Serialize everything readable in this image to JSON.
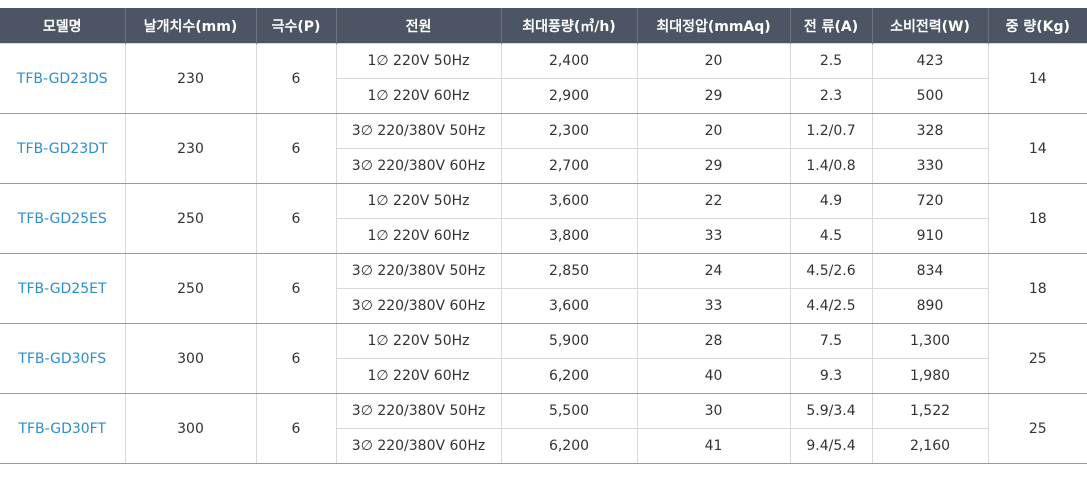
{
  "headers": [
    "모델명",
    "날개치수(mm)",
    "극수(P)",
    "전원",
    "최대풍량(㎥/h)",
    "최대정압(mmAq)",
    "전 류(A)",
    "소비전력(W)",
    "중 량(Kg)"
  ],
  "models": [
    {
      "model": "TFB-GD23DS",
      "blade": "230",
      "poles": "6",
      "weight": "14",
      "rows": [
        {
          "power": "1∅ 220V 50Hz",
          "airflow": "2,400",
          "pressure": "20",
          "current": "2.5",
          "watts": "423"
        },
        {
          "power": "1∅ 220V 60Hz",
          "airflow": "2,900",
          "pressure": "29",
          "current": "2.3",
          "watts": "500"
        }
      ]
    },
    {
      "model": "TFB-GD23DT",
      "blade": "230",
      "poles": "6",
      "weight": "14",
      "rows": [
        {
          "power": "3∅ 220/380V 50Hz",
          "airflow": "2,300",
          "pressure": "20",
          "current": "1.2/0.7",
          "watts": "328"
        },
        {
          "power": "3∅ 220/380V 60Hz",
          "airflow": "2,700",
          "pressure": "29",
          "current": "1.4/0.8",
          "watts": "330"
        }
      ]
    },
    {
      "model": "TFB-GD25ES",
      "blade": "250",
      "poles": "6",
      "weight": "18",
      "rows": [
        {
          "power": "1∅ 220V 50Hz",
          "airflow": "3,600",
          "pressure": "22",
          "current": "4.9",
          "watts": "720"
        },
        {
          "power": "1∅ 220V 60Hz",
          "airflow": "3,800",
          "pressure": "33",
          "current": "4.5",
          "watts": "910"
        }
      ]
    },
    {
      "model": "TFB-GD25ET",
      "blade": "250",
      "poles": "6",
      "weight": "18",
      "rows": [
        {
          "power": "3∅ 220/380V 50Hz",
          "airflow": "2,850",
          "pressure": "24",
          "current": "4.5/2.6",
          "watts": "834"
        },
        {
          "power": "3∅ 220/380V 60Hz",
          "airflow": "3,600",
          "pressure": "33",
          "current": "4.4/2.5",
          "watts": "890"
        }
      ]
    },
    {
      "model": "TFB-GD30FS",
      "blade": "300",
      "poles": "6",
      "weight": "25",
      "rows": [
        {
          "power": "1∅ 220V 50Hz",
          "airflow": "5,900",
          "pressure": "28",
          "current": "7.5",
          "watts": "1,300"
        },
        {
          "power": "1∅ 220V 60Hz",
          "airflow": "6,200",
          "pressure": "40",
          "current": "9.3",
          "watts": "1,980"
        }
      ]
    },
    {
      "model": "TFB-GD30FT",
      "blade": "300",
      "poles": "6",
      "weight": "25",
      "rows": [
        {
          "power": "3∅ 220/380V 50Hz",
          "airflow": "5,500",
          "pressure": "30",
          "current": "5.9/3.4",
          "watts": "1,522"
        },
        {
          "power": "3∅ 220/380V 60Hz",
          "airflow": "6,200",
          "pressure": "41",
          "current": "9.4/5.4",
          "watts": "2,160"
        }
      ]
    }
  ]
}
